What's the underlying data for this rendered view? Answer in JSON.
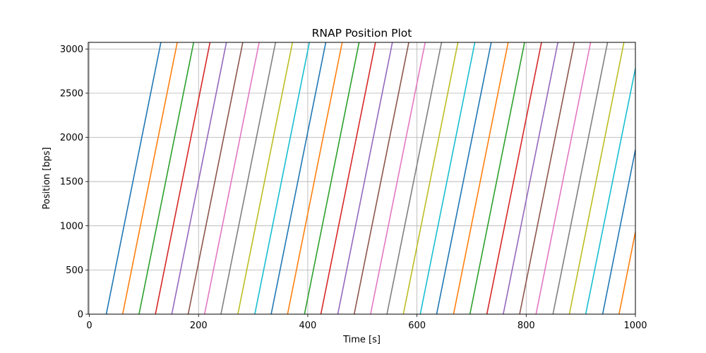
{
  "chart_data": {
    "type": "line",
    "title": "RNAP Position Plot",
    "xlabel": "Time [s]",
    "ylabel": "Position [bps]",
    "xlim": [
      -2,
      1000
    ],
    "ylim": [
      0,
      3075
    ],
    "xticks": [
      0,
      200,
      400,
      600,
      800,
      1000
    ],
    "yticks": [
      0,
      500,
      1000,
      1500,
      2000,
      2500,
      3000
    ],
    "grid": true,
    "legend": "none",
    "palette": [
      "#1f77b4",
      "#ff7f0e",
      "#2ca02c",
      "#d62728",
      "#9467bd",
      "#8c564b",
      "#e377c2",
      "#7f7f7f",
      "#bcbd22",
      "#17becf"
    ],
    "series": [
      {
        "x": [
          31,
          131
        ],
        "y": [
          0,
          3075
        ]
      },
      {
        "x": [
          61,
          161
        ],
        "y": [
          0,
          3075
        ]
      },
      {
        "x": [
          91,
          191
        ],
        "y": [
          0,
          3075
        ]
      },
      {
        "x": [
          121,
          221
        ],
        "y": [
          0,
          3075
        ]
      },
      {
        "x": [
          151,
          251
        ],
        "y": [
          0,
          3075
        ]
      },
      {
        "x": [
          181,
          281
        ],
        "y": [
          0,
          3075
        ]
      },
      {
        "x": [
          211,
          311
        ],
        "y": [
          0,
          3075
        ]
      },
      {
        "x": [
          241,
          341
        ],
        "y": [
          0,
          3075
        ]
      },
      {
        "x": [
          272,
          372
        ],
        "y": [
          0,
          3075
        ]
      },
      {
        "x": [
          303,
          403
        ],
        "y": [
          0,
          3075
        ]
      },
      {
        "x": [
          333,
          433
        ],
        "y": [
          0,
          3075
        ]
      },
      {
        "x": [
          363,
          463
        ],
        "y": [
          0,
          3075
        ]
      },
      {
        "x": [
          394,
          494
        ],
        "y": [
          0,
          3075
        ]
      },
      {
        "x": [
          424,
          524
        ],
        "y": [
          0,
          3075
        ]
      },
      {
        "x": [
          455,
          555
        ],
        "y": [
          0,
          3075
        ]
      },
      {
        "x": [
          485,
          585
        ],
        "y": [
          0,
          3075
        ]
      },
      {
        "x": [
          515,
          615
        ],
        "y": [
          0,
          3075
        ]
      },
      {
        "x": [
          545,
          645
        ],
        "y": [
          0,
          3075
        ]
      },
      {
        "x": [
          575,
          675
        ],
        "y": [
          0,
          3075
        ]
      },
      {
        "x": [
          606,
          706
        ],
        "y": [
          0,
          3075
        ]
      },
      {
        "x": [
          636,
          736
        ],
        "y": [
          0,
          3075
        ]
      },
      {
        "x": [
          667,
          767
        ],
        "y": [
          0,
          3075
        ]
      },
      {
        "x": [
          697,
          797
        ],
        "y": [
          0,
          3075
        ]
      },
      {
        "x": [
          728,
          828
        ],
        "y": [
          0,
          3075
        ]
      },
      {
        "x": [
          758,
          858
        ],
        "y": [
          0,
          3075
        ]
      },
      {
        "x": [
          788,
          888
        ],
        "y": [
          0,
          3075
        ]
      },
      {
        "x": [
          818,
          918
        ],
        "y": [
          0,
          3075
        ]
      },
      {
        "x": [
          849,
          949
        ],
        "y": [
          0,
          3075
        ]
      },
      {
        "x": [
          879,
          979
        ],
        "y": [
          0,
          3075
        ]
      },
      {
        "x": [
          909,
          1000
        ],
        "y": [
          0,
          2780
        ]
      },
      {
        "x": [
          940,
          1000
        ],
        "y": [
          0,
          1860
        ]
      },
      {
        "x": [
          970,
          1000
        ],
        "y": [
          0,
          930
        ]
      }
    ]
  }
}
